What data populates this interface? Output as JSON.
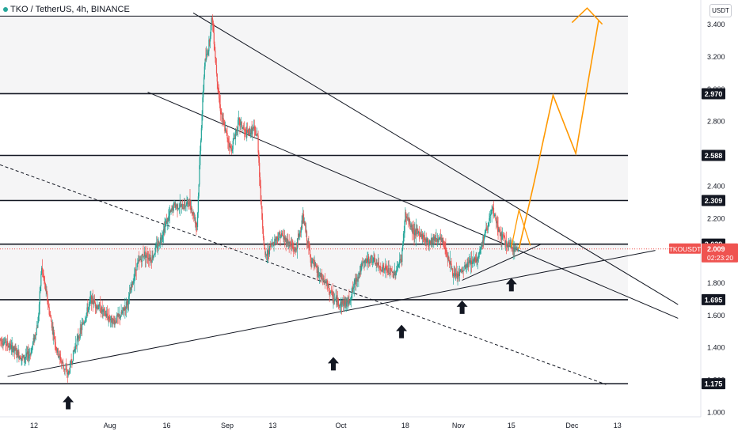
{
  "header": {
    "symbol_line": "TKO / TetherUS, 4h, BINANCE"
  },
  "price_axis": {
    "unit": "USDT"
  },
  "chart_data": {
    "type": "candlestick",
    "symbol": "TKO / TetherUS",
    "interval": "4h",
    "exchange": "BINANCE",
    "y_ticks": [
      "3.400",
      "3.200",
      "3.000",
      "2.800",
      "2.600",
      "2.400",
      "2.200",
      "2.000",
      "1.800",
      "1.600",
      "1.400",
      "1.200",
      "1.000"
    ],
    "ylim": [
      0.97,
      3.55
    ],
    "x_ticks": [
      {
        "label": "12",
        "day": 12
      },
      {
        "label": "Aug",
        "day": 32
      },
      {
        "label": "16",
        "day": 47
      },
      {
        "label": "Sep",
        "day": 63
      },
      {
        "label": "13",
        "day": 75
      },
      {
        "label": "Oct",
        "day": 93
      },
      {
        "label": "18",
        "day": 110
      },
      {
        "label": "Nov",
        "day": 124
      },
      {
        "label": "15",
        "day": 138
      },
      {
        "label": "Dec",
        "day": 154
      },
      {
        "label": "13",
        "day": 166
      }
    ],
    "xlim": [
      3,
      188
    ],
    "levels": [
      {
        "label": "2.970",
        "value": 2.97
      },
      {
        "label": "2.588",
        "value": 2.588
      },
      {
        "label": "2.309",
        "value": 2.309
      },
      {
        "label": "2.039",
        "value": 2.039
      },
      {
        "label": "1.695",
        "value": 1.695
      },
      {
        "label": "1.175",
        "value": 1.175
      }
    ],
    "top_band_value": 3.45,
    "current_price": {
      "ticker": "TKOUSDT",
      "price": "2.009",
      "countdown": "02:23:20",
      "value": 2.009
    },
    "trendlines": [
      {
        "style": "solid",
        "from": [
          54,
          3.47
        ],
        "to": [
          182,
          1.665
        ]
      },
      {
        "style": "solid",
        "from": [
          42,
          2.98
        ],
        "to": [
          182,
          1.58
        ]
      },
      {
        "style": "solid",
        "from": [
          5,
          1.22
        ],
        "to": [
          176,
          2.0
        ]
      },
      {
        "style": "dashed",
        "from": [
          3,
          2.53
        ],
        "to": [
          163,
          1.17
        ]
      },
      {
        "style": "solid",
        "from": [
          125,
          1.815
        ],
        "to": [
          146,
          2.04
        ]
      }
    ],
    "projection": [
      [
        140,
        2.01
      ],
      [
        144,
        2.42
      ],
      [
        149,
        2.96
      ],
      [
        155,
        2.6
      ],
      [
        161,
        3.42
      ]
    ],
    "projection_arrowhead": [
      [
        154,
        3.41
      ],
      [
        158,
        3.5
      ],
      [
        162,
        3.4
      ]
    ],
    "wedge_projection": [
      [
        138,
        2.02
      ],
      [
        140,
        2.25
      ],
      [
        143,
        2.03
      ]
    ],
    "arrows": [
      {
        "day": 21,
        "value": 1.1
      },
      {
        "day": 91,
        "value": 1.34
      },
      {
        "day": 109,
        "value": 1.54
      },
      {
        "day": 125,
        "value": 1.69
      },
      {
        "day": 138,
        "value": 1.83
      }
    ],
    "price_path": [
      [
        3,
        1.45
      ],
      [
        6,
        1.4
      ],
      [
        9,
        1.33
      ],
      [
        11,
        1.36
      ],
      [
        13,
        1.55
      ],
      [
        14,
        1.9
      ],
      [
        16,
        1.62
      ],
      [
        18,
        1.38
      ],
      [
        20,
        1.27
      ],
      [
        21,
        1.23
      ],
      [
        23,
        1.42
      ],
      [
        25,
        1.55
      ],
      [
        27,
        1.7
      ],
      [
        29,
        1.65
      ],
      [
        31,
        1.6
      ],
      [
        33,
        1.56
      ],
      [
        35,
        1.6
      ],
      [
        37,
        1.7
      ],
      [
        39,
        1.9
      ],
      [
        41,
        1.98
      ],
      [
        43,
        1.95
      ],
      [
        45,
        2.05
      ],
      [
        47,
        2.18
      ],
      [
        49,
        2.28
      ],
      [
        51,
        2.27
      ],
      [
        53,
        2.3
      ],
      [
        55,
        2.15
      ],
      [
        56,
        2.7
      ],
      [
        57,
        3.15
      ],
      [
        58,
        3.25
      ],
      [
        59,
        3.45
      ],
      [
        60,
        3.15
      ],
      [
        61,
        2.9
      ],
      [
        62,
        2.78
      ],
      [
        64,
        2.62
      ],
      [
        66,
        2.8
      ],
      [
        68,
        2.72
      ],
      [
        70,
        2.75
      ],
      [
        71,
        2.7
      ],
      [
        72,
        2.25
      ],
      [
        73,
        1.95
      ],
      [
        75,
        2.05
      ],
      [
        77,
        2.1
      ],
      [
        79,
        2.05
      ],
      [
        81,
        2.0
      ],
      [
        83,
        2.2
      ],
      [
        85,
        1.95
      ],
      [
        87,
        1.85
      ],
      [
        89,
        1.8
      ],
      [
        91,
        1.7
      ],
      [
        93,
        1.67
      ],
      [
        95,
        1.68
      ],
      [
        97,
        1.82
      ],
      [
        99,
        1.92
      ],
      [
        101,
        1.95
      ],
      [
        103,
        1.9
      ],
      [
        105,
        1.88
      ],
      [
        107,
        1.85
      ],
      [
        109,
        1.95
      ],
      [
        110,
        2.22
      ],
      [
        112,
        2.12
      ],
      [
        114,
        2.1
      ],
      [
        116,
        2.05
      ],
      [
        118,
        2.08
      ],
      [
        120,
        2.05
      ],
      [
        121,
        1.98
      ],
      [
        123,
        1.83
      ],
      [
        125,
        1.87
      ],
      [
        127,
        1.93
      ],
      [
        129,
        1.95
      ],
      [
        131,
        2.1
      ],
      [
        133,
        2.25
      ],
      [
        135,
        2.1
      ],
      [
        137,
        2.03
      ],
      [
        139,
        2.01
      ],
      [
        140,
        2.009
      ]
    ]
  }
}
